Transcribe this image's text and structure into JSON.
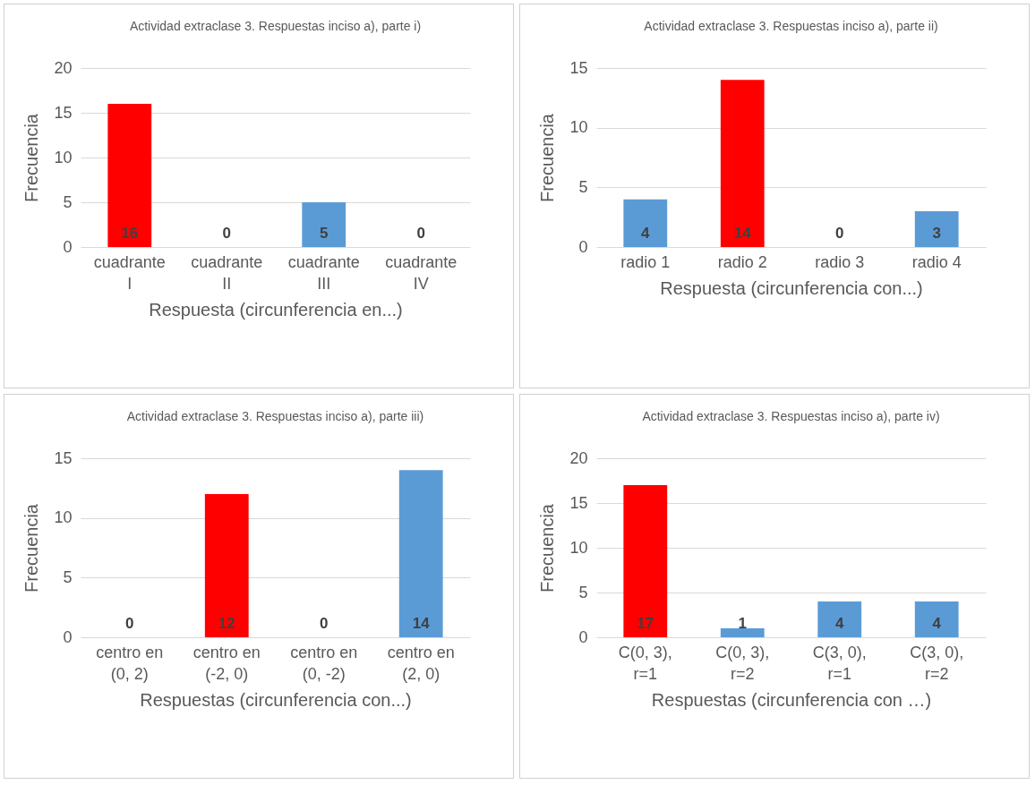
{
  "chart_data": [
    {
      "type": "bar",
      "title": "Actividad extraclase 3. Respuestas inciso a), parte i)",
      "xlabel": "Respuesta (circunferencia en...)",
      "ylabel": "Frecuencia",
      "categories": [
        "cuadrante I",
        "cuadrante II",
        "cuadrante III",
        "cuadrante IV"
      ],
      "values": [
        16,
        0,
        5,
        0
      ],
      "colors": [
        "#ff0000",
        "#5b9bd5",
        "#5b9bd5",
        "#5b9bd5"
      ],
      "ylim": [
        0,
        20
      ],
      "yticks": [
        0,
        5,
        10,
        15,
        20
      ],
      "grid": "y",
      "data_labels": true
    },
    {
      "type": "bar",
      "title": "Actividad extraclase 3. Respuestas inciso a), parte ii)",
      "xlabel": "Respuesta (circunferencia con...)",
      "ylabel": "Frecuencia",
      "categories": [
        "radio 1",
        "radio 2",
        "radio 3",
        "radio 4"
      ],
      "values": [
        4,
        14,
        0,
        3
      ],
      "colors": [
        "#5b9bd5",
        "#ff0000",
        "#5b9bd5",
        "#5b9bd5"
      ],
      "ylim": [
        0,
        15
      ],
      "yticks": [
        0,
        5,
        10,
        15
      ],
      "grid": "y",
      "data_labels": true
    },
    {
      "type": "bar",
      "title": "Actividad extraclase 3. Respuestas inciso a), parte iii)",
      "xlabel": "Respuestas (circunferencia con...)",
      "ylabel": "Frecuencia",
      "categories": [
        "centro en (0, 2)",
        "centro en (-2, 0)",
        "centro en (0, -2)",
        "centro en (2, 0)"
      ],
      "values": [
        0,
        12,
        0,
        14
      ],
      "colors": [
        "#5b9bd5",
        "#ff0000",
        "#5b9bd5",
        "#5b9bd5"
      ],
      "ylim": [
        0,
        15
      ],
      "yticks": [
        0,
        5,
        10,
        15
      ],
      "grid": "y",
      "data_labels": true
    },
    {
      "type": "bar",
      "title": "Actividad extraclase 3. Respuestas inciso a), parte iv)",
      "xlabel": "Respuestas (circunferencia con …)",
      "ylabel": "Frecuencia",
      "categories": [
        "C(0, 3), r=1",
        "C(0, 3), r=2",
        "C(3, 0), r=1",
        "C(3, 0), r=2"
      ],
      "values": [
        17,
        1,
        4,
        4
      ],
      "colors": [
        "#ff0000",
        "#5b9bd5",
        "#5b9bd5",
        "#5b9bd5"
      ],
      "ylim": [
        0,
        20
      ],
      "yticks": [
        0,
        5,
        10,
        15,
        20
      ],
      "grid": "y",
      "data_labels": true
    }
  ]
}
